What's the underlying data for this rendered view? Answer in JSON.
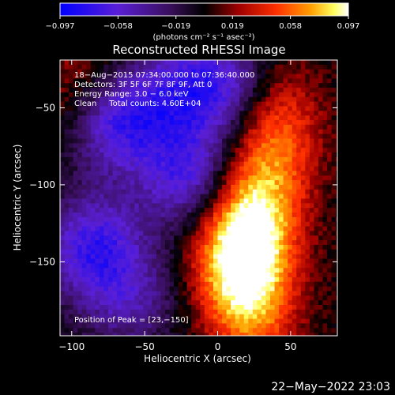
{
  "chart_data": {
    "type": "heatmap",
    "title": "Reconstructed RHESSI Image",
    "xlabel": "Heliocentric X (arcsec)",
    "ylabel": "Heliocentric Y (arcsec)",
    "xlim": [
      -108,
      82
    ],
    "ylim": [
      -198,
      -19
    ],
    "x_ticks": [
      -100,
      -50,
      0,
      50
    ],
    "x_tick_labels": [
      "−100",
      "−50",
      "0",
      "50"
    ],
    "y_ticks": [
      -50,
      -100,
      -150
    ],
    "y_tick_labels": [
      "−50",
      "−100",
      "−150"
    ],
    "colorbar": {
      "min": -0.097,
      "max": 0.097,
      "tick_values": [
        -0.097,
        -0.058,
        -0.019,
        0.019,
        0.058,
        0.097
      ],
      "tick_labels": [
        "−0.097",
        "−0.058",
        "−0.019",
        "0.019",
        "0.058",
        "0.097"
      ],
      "units_label": "(photons cm⁻² s⁻¹ asec⁻²)",
      "colormap": "blue-purple-black-red-orange-yellow-white"
    },
    "annotations": [
      "18−Aug−2015 07:34:00.000 to 07:36:40.000",
      "Detectors: 3F 5F 6F 7F 8F 9F, Att 0",
      "Energy Range: 3.0 − 6.0 keV",
      "Clean     Total counts: 4.60E+04"
    ],
    "peak_label": "Position of Peak = [23,−150]",
    "peak_position": [
      23,
      -150
    ],
    "timestamp": "22−May−2022 23:03",
    "regions": [
      {
        "type": "positive",
        "x": 15,
        "y": -145,
        "value": 0.097
      },
      {
        "type": "positive",
        "x": 30,
        "y": -110,
        "value": 0.05
      },
      {
        "type": "positive",
        "x": 40,
        "y": -60,
        "value": 0.05
      },
      {
        "type": "positive",
        "x": 25,
        "y": -185,
        "value": 0.045
      },
      {
        "type": "positive",
        "x": -95,
        "y": -35,
        "value": 0.03
      },
      {
        "type": "negative",
        "x": -70,
        "y": -60,
        "value": -0.07
      },
      {
        "type": "negative",
        "x": -20,
        "y": -95,
        "value": -0.065
      },
      {
        "type": "negative",
        "x": -85,
        "y": -140,
        "value": -0.07
      },
      {
        "type": "negative",
        "x": 5,
        "y": -35,
        "value": -0.06
      },
      {
        "type": "negative",
        "x": -30,
        "y": -40,
        "value": -0.045
      },
      {
        "type": "negative",
        "x": -60,
        "y": -175,
        "value": -0.04
      }
    ]
  }
}
